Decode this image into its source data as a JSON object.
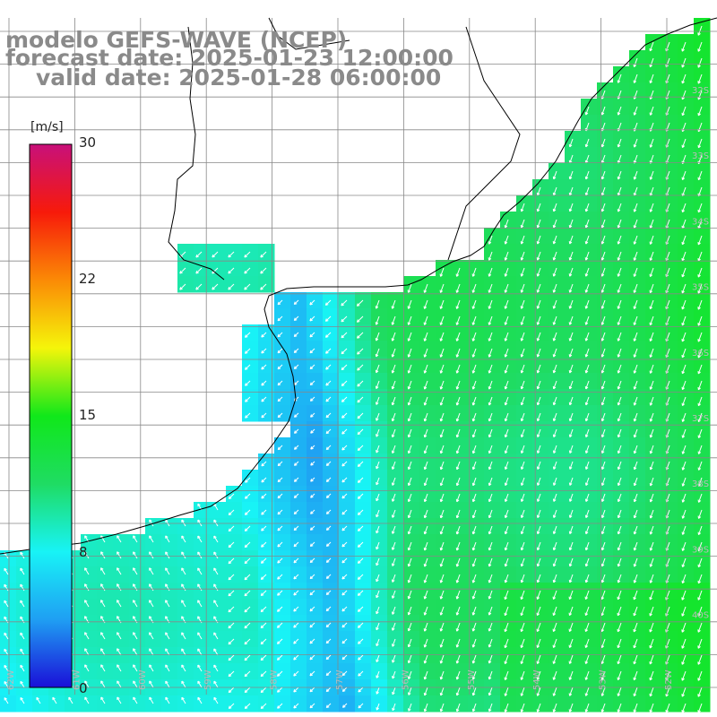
{
  "title": {
    "line1": "modelo GEFS-WAVE (NCEP)",
    "line2": "forecast date: 2025-01-23 12:00:00",
    "line3": "valid date: 2025-01-28 06:00:00"
  },
  "colorbar": {
    "unit": "[m/s]",
    "ticks": [
      "30",
      "22",
      "15",
      "8",
      "0"
    ],
    "range": [
      0,
      30
    ],
    "stops": [
      "#1a0fd8",
      "#1f9ff3",
      "#18f3f6",
      "#1fdc63",
      "#10e81a",
      "#f5f50a",
      "#fb8a06",
      "#f71a0a",
      "#c8107a"
    ]
  },
  "map": {
    "lat_labels": [
      "32S",
      "33S",
      "34S",
      "35S",
      "36S",
      "37S",
      "38S",
      "39S",
      "40S"
    ],
    "lon_labels": [
      "62W",
      "61W",
      "60W",
      "59W",
      "58W",
      "57W",
      "56W",
      "55W",
      "54W",
      "53W",
      "52W"
    ],
    "land_color": "#ffffff",
    "grid_color": "#888888",
    "coast_color": "#000000"
  }
}
